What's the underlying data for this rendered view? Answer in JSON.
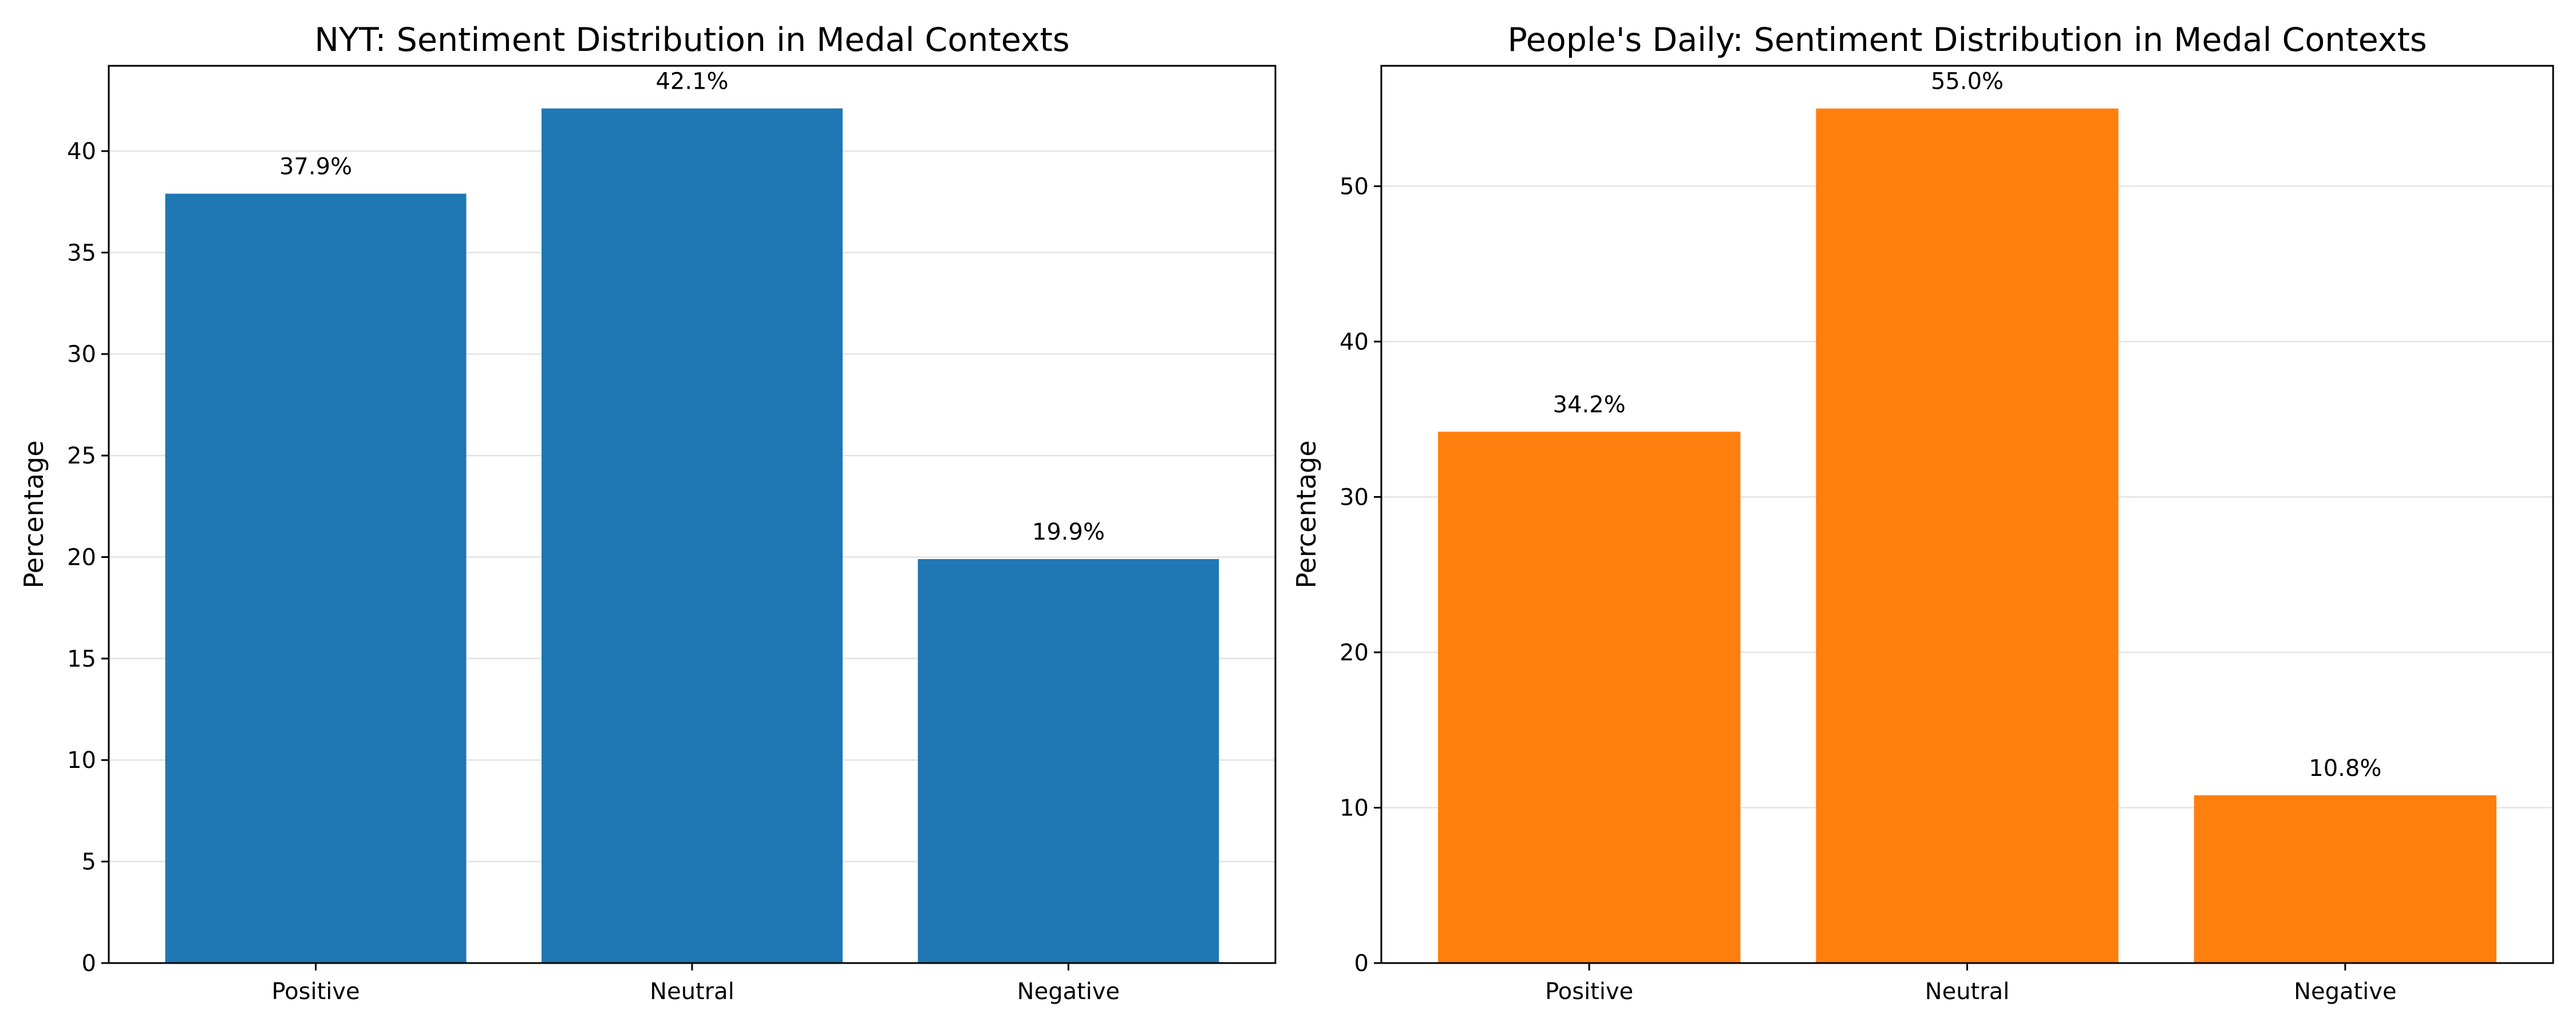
{
  "chart_data": [
    {
      "type": "bar",
      "title": "NYT: Sentiment Distribution in Medal Contexts",
      "xlabel": "",
      "ylabel": "Percentage",
      "categories": [
        "Positive",
        "Neutral",
        "Negative"
      ],
      "values": [
        37.9,
        42.1,
        19.9
      ],
      "value_labels": [
        "37.9%",
        "42.1%",
        "19.9%"
      ],
      "color": "#1f77b4",
      "ylim": [
        0,
        44.2
      ],
      "yticks": [
        0,
        5,
        10,
        15,
        20,
        25,
        30,
        35,
        40
      ],
      "grid": "y"
    },
    {
      "type": "bar",
      "title": "People's Daily: Sentiment Distribution in Medal Contexts",
      "xlabel": "",
      "ylabel": "Percentage",
      "categories": [
        "Positive",
        "Neutral",
        "Negative"
      ],
      "values": [
        34.2,
        55.0,
        10.8
      ],
      "value_labels": [
        "34.2%",
        "55.0%",
        "10.8%"
      ],
      "color": "#ff7f0e",
      "ylim": [
        0,
        57.75
      ],
      "yticks": [
        0,
        10,
        20,
        30,
        40,
        50
      ],
      "grid": "y"
    }
  ]
}
